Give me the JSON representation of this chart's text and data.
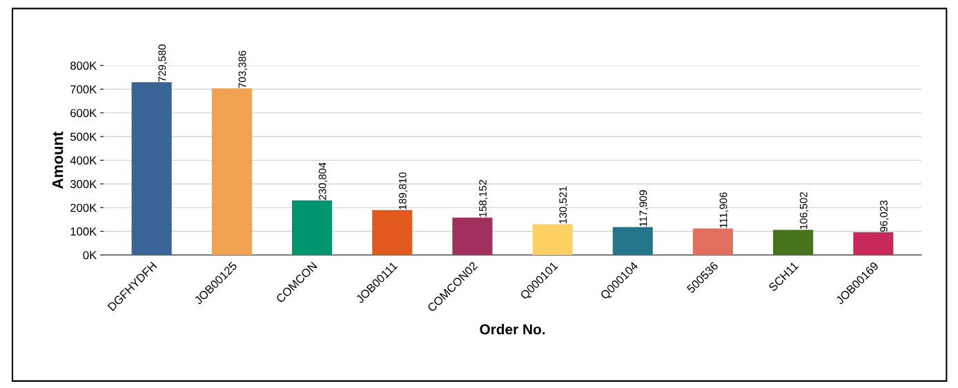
{
  "chart_data": {
    "type": "bar",
    "xlabel": "Order No.",
    "ylabel": "Amount",
    "categories": [
      "DGFHYDFH",
      "JOB00125",
      "COMCON",
      "JOB00111",
      "COMCON02",
      "Q000101",
      "Q000104",
      "500536",
      "SCH11",
      "JOB00169"
    ],
    "values": [
      729580,
      703386,
      230804,
      189810,
      158152,
      130521,
      117909,
      111906,
      106502,
      96023
    ],
    "value_labels": [
      "729,580",
      "703,386",
      "230,804",
      "189,810",
      "158,152",
      "130,521",
      "117,909",
      "111,906",
      "106,502",
      "96,023"
    ],
    "colors": [
      "#3a6496",
      "#f0a250",
      "#00956e",
      "#e05a1e",
      "#a0305e",
      "#fdd062",
      "#23758c",
      "#e07060",
      "#46741a",
      "#c8285a"
    ],
    "ylim": [
      0,
      800000
    ],
    "yticks": [
      {
        "value": 0,
        "label": "0K"
      },
      {
        "value": 100000,
        "label": "100K"
      },
      {
        "value": 200000,
        "label": "200K"
      },
      {
        "value": 300000,
        "label": "300K"
      },
      {
        "value": 400000,
        "label": "400K"
      },
      {
        "value": 500000,
        "label": "500K"
      },
      {
        "value": 600000,
        "label": "600K"
      },
      {
        "value": 700000,
        "label": "700K"
      },
      {
        "value": 800000,
        "label": "800K"
      }
    ],
    "grid": "y",
    "legend": false
  }
}
